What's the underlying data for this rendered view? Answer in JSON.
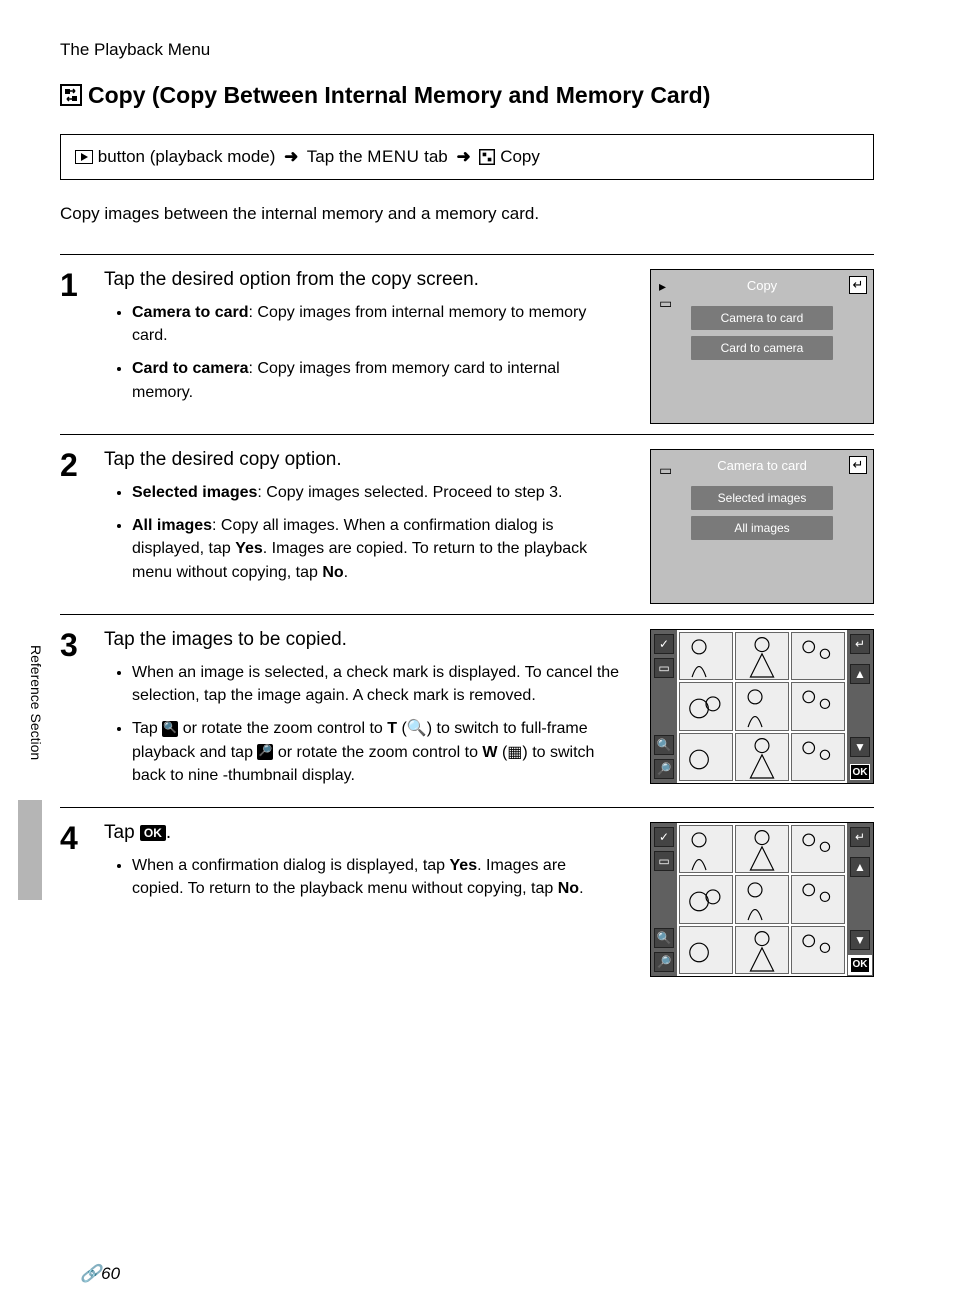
{
  "header": {
    "label": "The Playback Menu"
  },
  "title": "Copy (Copy Between Internal Memory and Memory Card)",
  "breadcrumb": {
    "pb_button": "button (playback mode)",
    "arrow": "➜",
    "tap_menu_pre": "Tap the",
    "menu_label": "MENU",
    "tab_word": "tab",
    "copy": "Copy"
  },
  "intro": "Copy images between the internal memory and a memory card.",
  "steps": [
    {
      "num": "1",
      "heading": "Tap the desired option from the copy screen.",
      "bullets": [
        {
          "term": "Camera to card",
          "rest": ": Copy images from internal memory to memory card."
        },
        {
          "term": "Card to camera",
          "rest": ": Copy images from memory card to internal memory."
        }
      ],
      "screen": {
        "title": "Copy",
        "btn1": "Camera to card",
        "btn2": "Card to camera"
      }
    },
    {
      "num": "2",
      "heading": "Tap the desired copy option.",
      "bullets": [
        {
          "term": "Selected images",
          "rest": ": Copy images selected. Proceed to step 3."
        },
        {
          "term": "All images",
          "rest_html": ": Copy all images. When a confirmation dialog is displayed, tap <b>Yes</b>. Images are copied. To return to the playback menu without copying, tap <b>No</b>."
        }
      ],
      "screen": {
        "title": "Camera to card",
        "btn1": "Selected images",
        "btn2": "All images"
      }
    },
    {
      "num": "3",
      "heading": "Tap the images to be copied.",
      "bullets": [
        {
          "plain": "When an image is selected, a check mark is displayed. To cancel the selection, tap the image again. A check mark is removed."
        },
        {
          "html": "Tap <span class='small-icon-box'>🔍</span> or rotate the zoom control to <b>T</b> (🔍) to switch to full-frame playback and tap <span class='small-icon-box'>🔎</span> or rotate the zoom control to <b>W</b> (▦) to switch back to nine -thumbnail display."
        }
      ]
    },
    {
      "num": "4",
      "heading_html": "Tap <span class='ok-inline'>OK</span>.",
      "bullets": [
        {
          "html": "When a confirmation dialog is displayed, tap <b>Yes</b>. Images are copied. To return to the playback menu without copying, tap <b>No</b>."
        }
      ]
    }
  ],
  "sidebar": {
    "label": "Reference Section"
  },
  "page_num": "60",
  "colors": {
    "screen_bg": "#bfbfbf",
    "screen_btn": "#7a7a7a",
    "side_dark": "#606060",
    "tab_gray": "#b5b5b5"
  }
}
